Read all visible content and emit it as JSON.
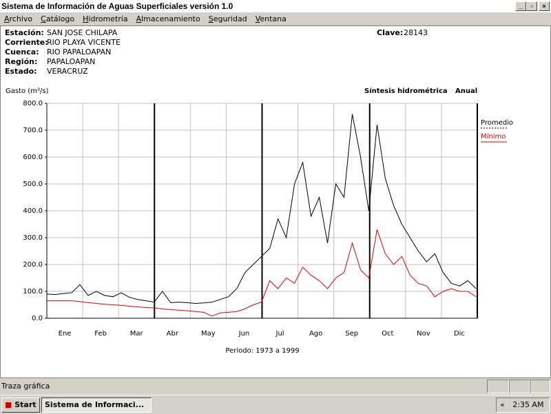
{
  "window": {
    "title": "Sistema de Información de Aguas Superficiales  versión 1.0",
    "menu": [
      "Archivo",
      "Catálogo",
      "Hidrometría",
      "Almacenamiento",
      "Seguridad",
      "Ventana"
    ]
  },
  "station": {
    "fields": [
      {
        "label": "Estación:",
        "value": "SAN JOSE CHILAPA"
      },
      {
        "label": "Corriente:",
        "value": "RIO PLAYA VICENTE"
      },
      {
        "label": "Cuenca:",
        "value": "RIO PAPALOAPAN"
      },
      {
        "label": "Región:",
        "value": "PAPALOAPAN"
      },
      {
        "label": "Estado:",
        "value": "VERACRUZ"
      }
    ],
    "clave_label": "Clave:",
    "clave": "28143"
  },
  "chart_data": {
    "type": "line",
    "title": "Síntesis hidrométrica",
    "subtitle": "Anual",
    "y_label": "Gasto (m³/s)",
    "footer": "Período:  1973 a 1999",
    "categories": [
      "Ene",
      "Feb",
      "Mar",
      "Abr",
      "May",
      "Jun",
      "Jul",
      "Ago",
      "Sep",
      "Oct",
      "Nov",
      "Dic"
    ],
    "x": [
      0,
      7,
      14,
      21,
      28,
      35,
      42,
      49,
      56,
      63,
      70,
      77,
      84,
      91,
      98,
      105,
      112,
      119,
      126,
      133,
      140,
      147,
      154,
      161,
      168,
      175,
      182,
      189,
      196,
      203,
      210,
      217,
      224,
      231,
      238,
      245,
      252,
      259,
      266,
      273,
      280,
      287,
      294,
      301,
      308,
      315,
      322,
      329,
      336,
      343,
      350,
      357,
      364
    ],
    "xlim": [
      0,
      365
    ],
    "ylim": [
      0,
      800
    ],
    "yticks": [
      {
        "value": 0,
        "label": "0.0"
      },
      {
        "value": 100,
        "label": "100.0"
      },
      {
        "value": 200,
        "label": "200.0"
      },
      {
        "value": 300,
        "label": "300.0"
      },
      {
        "value": 400,
        "label": "400.0"
      },
      {
        "value": 500,
        "label": "500.0"
      },
      {
        "value": 600,
        "label": "600.0"
      },
      {
        "value": 700,
        "label": "700.0"
      },
      {
        "value": 800,
        "label": "800.0"
      }
    ],
    "grid": true,
    "legend": "right",
    "series": [
      {
        "name": "Promedio",
        "color": "#000000",
        "values": [
          90,
          88,
          92,
          95,
          125,
          85,
          100,
          85,
          80,
          95,
          78,
          70,
          65,
          60,
          100,
          58,
          60,
          58,
          55,
          57,
          60,
          70,
          80,
          110,
          170,
          200,
          230,
          260,
          370,
          300,
          500,
          580,
          380,
          450,
          280,
          500,
          450,
          760,
          600,
          400,
          720,
          520,
          420,
          350,
          300,
          250,
          210,
          240,
          170,
          130,
          120,
          140,
          110
        ]
      },
      {
        "name": "Mínimo",
        "color": "#e00000",
        "values": [
          65,
          65,
          65,
          65,
          62,
          58,
          55,
          52,
          50,
          48,
          45,
          42,
          40,
          38,
          35,
          32,
          30,
          28,
          25,
          22,
          8,
          20,
          22,
          25,
          35,
          50,
          60,
          140,
          110,
          150,
          130,
          190,
          160,
          140,
          110,
          150,
          170,
          280,
          180,
          150,
          330,
          240,
          200,
          230,
          160,
          130,
          120,
          80,
          100,
          110,
          100,
          100,
          80
        ]
      }
    ]
  },
  "status_bar": "Traza gráfica",
  "taskbar": {
    "start": "Start",
    "task": "Sistema de Informaci...",
    "chevron": "«",
    "clock": "2:35 AM"
  }
}
